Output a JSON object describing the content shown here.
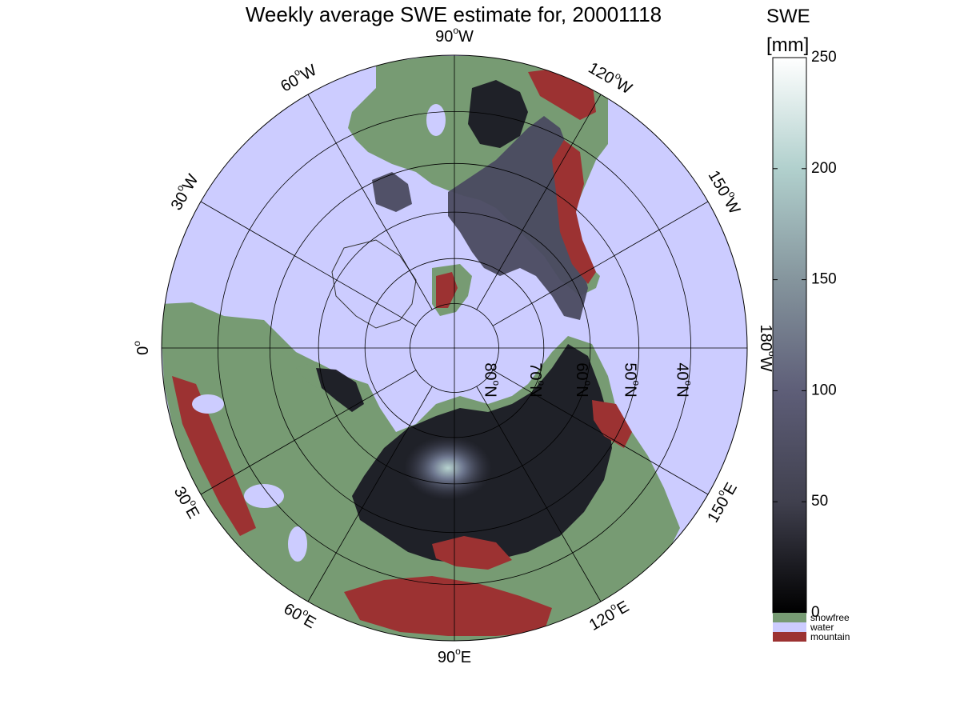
{
  "title": "Weekly average SWE estimate for, 20001118",
  "map": {
    "projection": "north polar stereographic",
    "longitude_labels": [
      {
        "text": "90",
        "sup": "o",
        "suffix": "W",
        "lon": 90
      },
      {
        "text": "120",
        "sup": "o",
        "suffix": "W",
        "lon": 120
      },
      {
        "text": "60",
        "sup": "o",
        "suffix": "W",
        "lon": 60
      },
      {
        "text": "150",
        "sup": "o",
        "suffix": "W",
        "lon": 150
      },
      {
        "text": "30",
        "sup": "o",
        "suffix": "W",
        "lon": 30
      },
      {
        "text": "180",
        "sup": "o",
        "suffix": "W",
        "lon": 180
      },
      {
        "text": "0",
        "sup": "o",
        "suffix": "",
        "lon": 0
      },
      {
        "text": "150",
        "sup": "o",
        "suffix": "E",
        "lon": 210
      },
      {
        "text": "30",
        "sup": "o",
        "suffix": "E",
        "lon": 330
      },
      {
        "text": "120",
        "sup": "o",
        "suffix": "E",
        "lon": 240
      },
      {
        "text": "60",
        "sup": "o",
        "suffix": "E",
        "lon": 300
      },
      {
        "text": "90",
        "sup": "o",
        "suffix": "E",
        "lon": 270
      }
    ],
    "latitude_labels": [
      {
        "text": "80",
        "sup": "o",
        "suffix": "N",
        "lat": 80
      },
      {
        "text": "70",
        "sup": "o",
        "suffix": "N",
        "lat": 70
      },
      {
        "text": "60",
        "sup": "o",
        "suffix": "N",
        "lat": 60
      },
      {
        "text": "50",
        "sup": "o",
        "suffix": "N",
        "lat": 50
      },
      {
        "text": "40",
        "sup": "o",
        "suffix": "N",
        "lat": 40
      }
    ],
    "parallels": [
      40,
      50,
      60,
      70,
      80
    ],
    "meridians": [
      0,
      30,
      60,
      90,
      120,
      150,
      180,
      210,
      240,
      270,
      300,
      330
    ],
    "min_latitude": 30
  },
  "colorbar": {
    "title_line1": "SWE",
    "title_line2": "[mm]",
    "range": [
      0,
      250
    ],
    "ticks": [
      {
        "value": 250,
        "label": "250"
      },
      {
        "value": 200,
        "label": "200"
      },
      {
        "value": 150,
        "label": "150"
      },
      {
        "value": 100,
        "label": "100"
      },
      {
        "value": 50,
        "label": "50"
      },
      {
        "value": 0,
        "label": "0"
      }
    ],
    "stops": [
      "#000000",
      "#40404e",
      "#5e5e78",
      "#85959d",
      "#b1d0cd",
      "#ffffff"
    ],
    "categories": [
      {
        "label": "snowfree",
        "color": "#779b73"
      },
      {
        "label": "water",
        "color": "#ccccff"
      },
      {
        "label": "mountain",
        "color": "#9c3232"
      }
    ]
  },
  "colors": {
    "water": "#ccccff",
    "land": "#779b73",
    "mountain": "#9c3232",
    "snow_low": "#1a1a24",
    "snow_mid": "#4a4a60",
    "snow_high": "#9aaeb2"
  }
}
